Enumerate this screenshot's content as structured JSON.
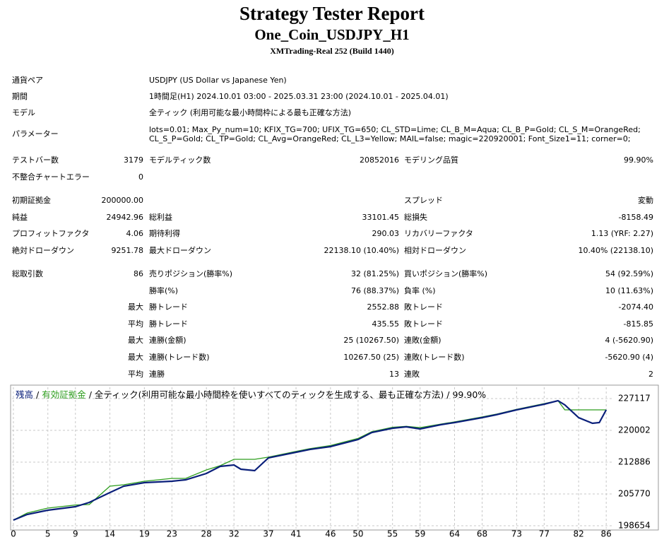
{
  "header": {
    "title": "Strategy Tester Report",
    "subtitle": "One_Coin_USDJPY_H1",
    "build": "XMTrading-Real 252 (Build 1440)"
  },
  "info": [
    {
      "label": "通貨ペア",
      "value": "USDJPY (US Dollar vs Japanese Yen)"
    },
    {
      "label": "期間",
      "value": "1時間足(H1) 2024.10.01 03:00 - 2025.03.31 23:00 (2024.10.01 - 2025.04.01)"
    },
    {
      "label": "モデル",
      "value": "全ティック (利用可能な最小時間枠による最も正確な方法)"
    },
    {
      "label": "パラメーター",
      "value": "lots=0.01; Max_Py_num=10; KFIX_TG=700; UFIX_TG=650; CL_STD=Lime; CL_B_M=Aqua; CL_B_P=Gold; CL_S_M=OrangeRed; CL_S_P=Gold; CL_TP=Gold; CL_Avg=OrangeRed; CL_L3=Yellow; MAIL=false; magic=220920001; Font_Size1=11; corner=0;"
    }
  ],
  "stats": [
    [
      [
        "テストバー数",
        "3179",
        "モデルティック数",
        "20852016",
        "モデリング品質",
        "99.90%"
      ],
      [
        "不整合チャートエラー",
        "0",
        null,
        null,
        null,
        null
      ]
    ],
    [
      [
        "初期証拠金",
        "200000.00",
        null,
        null,
        "スプレッド",
        "変動"
      ],
      [
        "純益",
        "24942.96",
        "総利益",
        "33101.45",
        "総損失",
        "-8158.49"
      ],
      [
        "プロフィットファクタ",
        "4.06",
        "期待利得",
        "290.03",
        "リカバリーファクタ",
        "1.13 (YRF: 2.27)"
      ],
      [
        "絶対ドローダウン",
        "9251.78",
        "最大ドローダウン",
        "22138.10 (10.40%)",
        "相対ドローダウン",
        "10.40% (22138.10)"
      ]
    ],
    [
      [
        "総取引数",
        "86",
        "売りポジション(勝率%)",
        "32 (81.25%)",
        "買いポジション(勝率%)",
        "54 (92.59%)"
      ],
      [
        null,
        null,
        "勝率(%)",
        "76 (88.37%)",
        "負率 (%)",
        "10 (11.63%)"
      ],
      [
        null,
        "最大",
        "勝トレード",
        "2552.88",
        "敗トレード",
        "-2074.40"
      ],
      [
        null,
        "平均",
        "勝トレード",
        "435.55",
        "敗トレード",
        "-815.85"
      ],
      [
        null,
        "最大",
        "連勝(金額)",
        "25 (10267.50)",
        "連敗(金額)",
        "4 (-5620.90)"
      ],
      [
        null,
        "最大",
        "連勝(トレード数)",
        "10267.50 (25)",
        "連敗(トレード数)",
        "-5620.90 (4)"
      ],
      [
        null,
        "平均",
        "連勝",
        "13",
        "連敗",
        "2"
      ]
    ]
  ],
  "chart_data": {
    "type": "line",
    "separator": "/",
    "model_text": "全ティック(利用可能な最小時間枠を使いすべてのティックを生成する、最も正確な方法)",
    "quality": "99.90%",
    "x": [
      0,
      2,
      5,
      9,
      11,
      14,
      16,
      19,
      23,
      25,
      28,
      30,
      32,
      33,
      35,
      37,
      41,
      43,
      46,
      50,
      52,
      55,
      57,
      59,
      62,
      64,
      68,
      70,
      73,
      77,
      79,
      80,
      82,
      84,
      85,
      86
    ],
    "series": [
      {
        "name": "残高",
        "color": "#0a1f7a",
        "values": [
          199924,
          201188,
          202137,
          202927,
          203876,
          206090,
          207513,
          208303,
          208620,
          208936,
          210358,
          211940,
          212256,
          211307,
          210991,
          213837,
          215102,
          215734,
          216367,
          217947,
          219528,
          220477,
          220793,
          220319,
          221267,
          221742,
          222848,
          223481,
          224587,
          225852,
          226643,
          225694,
          222848,
          221583,
          221742,
          224587
        ]
      },
      {
        "name": "有効証拠金",
        "color": "#2e9e1e",
        "values": [
          199924,
          201500,
          202600,
          203300,
          203400,
          207513,
          207830,
          208620,
          209252,
          209252,
          211149,
          212098,
          213520,
          213520,
          213520,
          214000,
          215300,
          215900,
          216600,
          218200,
          219700,
          220700,
          220900,
          220600,
          221400,
          221900,
          223000,
          223600,
          224700,
          226000,
          226643,
          224587,
          224587,
          224587,
          224587,
          224587
        ]
      }
    ],
    "xlim": [
      -0.2,
      86.8
    ],
    "ylim": [
      198022,
      229645
    ],
    "xticks": [
      0,
      5,
      9,
      14,
      19,
      23,
      28,
      32,
      37,
      41,
      46,
      50,
      55,
      59,
      64,
      68,
      73,
      77,
      82,
      86
    ],
    "yticks": [
      198654,
      205770,
      212886,
      220002,
      227117
    ],
    "grid": true
  }
}
